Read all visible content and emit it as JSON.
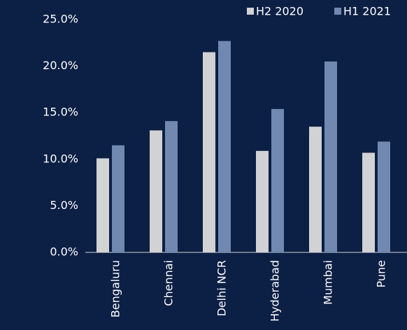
{
  "chart_data": {
    "type": "bar",
    "categories": [
      "Bengaluru",
      "Chennai",
      "Delhi NCR",
      "Hyderabad",
      "Mumbai",
      "Pune"
    ],
    "series": [
      {
        "name": "H2 2020",
        "color": "#d2d2d4",
        "values": [
          10.1,
          13.1,
          21.5,
          10.9,
          13.5,
          10.7
        ]
      },
      {
        "name": "H1 2021",
        "color": "#7189b1",
        "values": [
          11.5,
          14.1,
          22.7,
          15.4,
          20.5,
          11.9
        ]
      }
    ],
    "ylim": [
      0,
      25
    ],
    "yticks": [
      {
        "value": 0,
        "label": "0.0%"
      },
      {
        "value": 5,
        "label": "5.0%"
      },
      {
        "value": 10,
        "label": "10.0%"
      },
      {
        "value": 15,
        "label": "15.0%"
      },
      {
        "value": 20,
        "label": "20.0%"
      },
      {
        "value": 25,
        "label": "25.0%"
      }
    ],
    "legend": "upper right",
    "grid": false
  }
}
